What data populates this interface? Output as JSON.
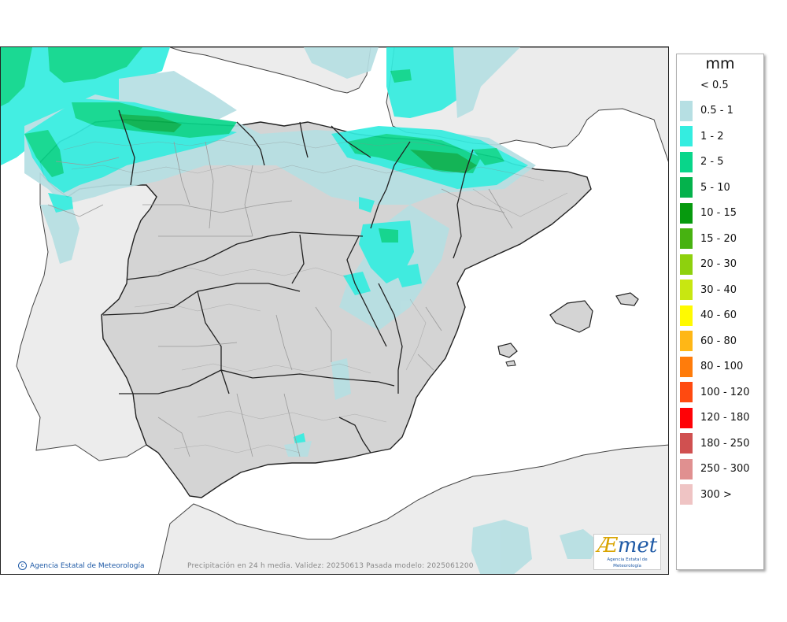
{
  "legend": {
    "unit": "mm",
    "items": [
      {
        "label": "< 0.5",
        "color": "#ffffff"
      },
      {
        "label": "0.5 - 1",
        "color": "#b6dfe3"
      },
      {
        "label": "1 - 2",
        "color": "#34ede0"
      },
      {
        "label": "2 - 5",
        "color": "#08d68a"
      },
      {
        "label": "5 - 10",
        "color": "#04b24c"
      },
      {
        "label": "10 - 15",
        "color": "#069a0e"
      },
      {
        "label": "15 - 20",
        "color": "#47b211"
      },
      {
        "label": "20 - 30",
        "color": "#8ed10d"
      },
      {
        "label": "30 - 40",
        "color": "#c8e711"
      },
      {
        "label": "40 - 60",
        "color": "#fffa01"
      },
      {
        "label": "60 - 80",
        "color": "#ffb716"
      },
      {
        "label": "80 - 100",
        "color": "#ff7c0b"
      },
      {
        "label": "100 - 120",
        "color": "#ff4a10"
      },
      {
        "label": "120 - 180",
        "color": "#ff0206"
      },
      {
        "label": "180 - 250",
        "color": "#d05050"
      },
      {
        "label": "250 - 300",
        "color": "#e09090"
      },
      {
        "label": "300 >",
        "color": "#efc4c4"
      }
    ]
  },
  "footer": {
    "credit": "Agencia Estatal de Meteorología",
    "caption": "Precipitación en 24 h media. Validez: 20250613 Pasada modelo: 2025061200"
  },
  "logo": {
    "brand_a": "Æ",
    "brand_rest": "met",
    "subtitle": "Agencia Estatal de Meteorología"
  },
  "map_colors": {
    "sea": "#ffffff",
    "foreign_land": "#ececec",
    "spain_land": "#d4d4d4",
    "border": "#222222",
    "province": "#9a9a9a"
  }
}
